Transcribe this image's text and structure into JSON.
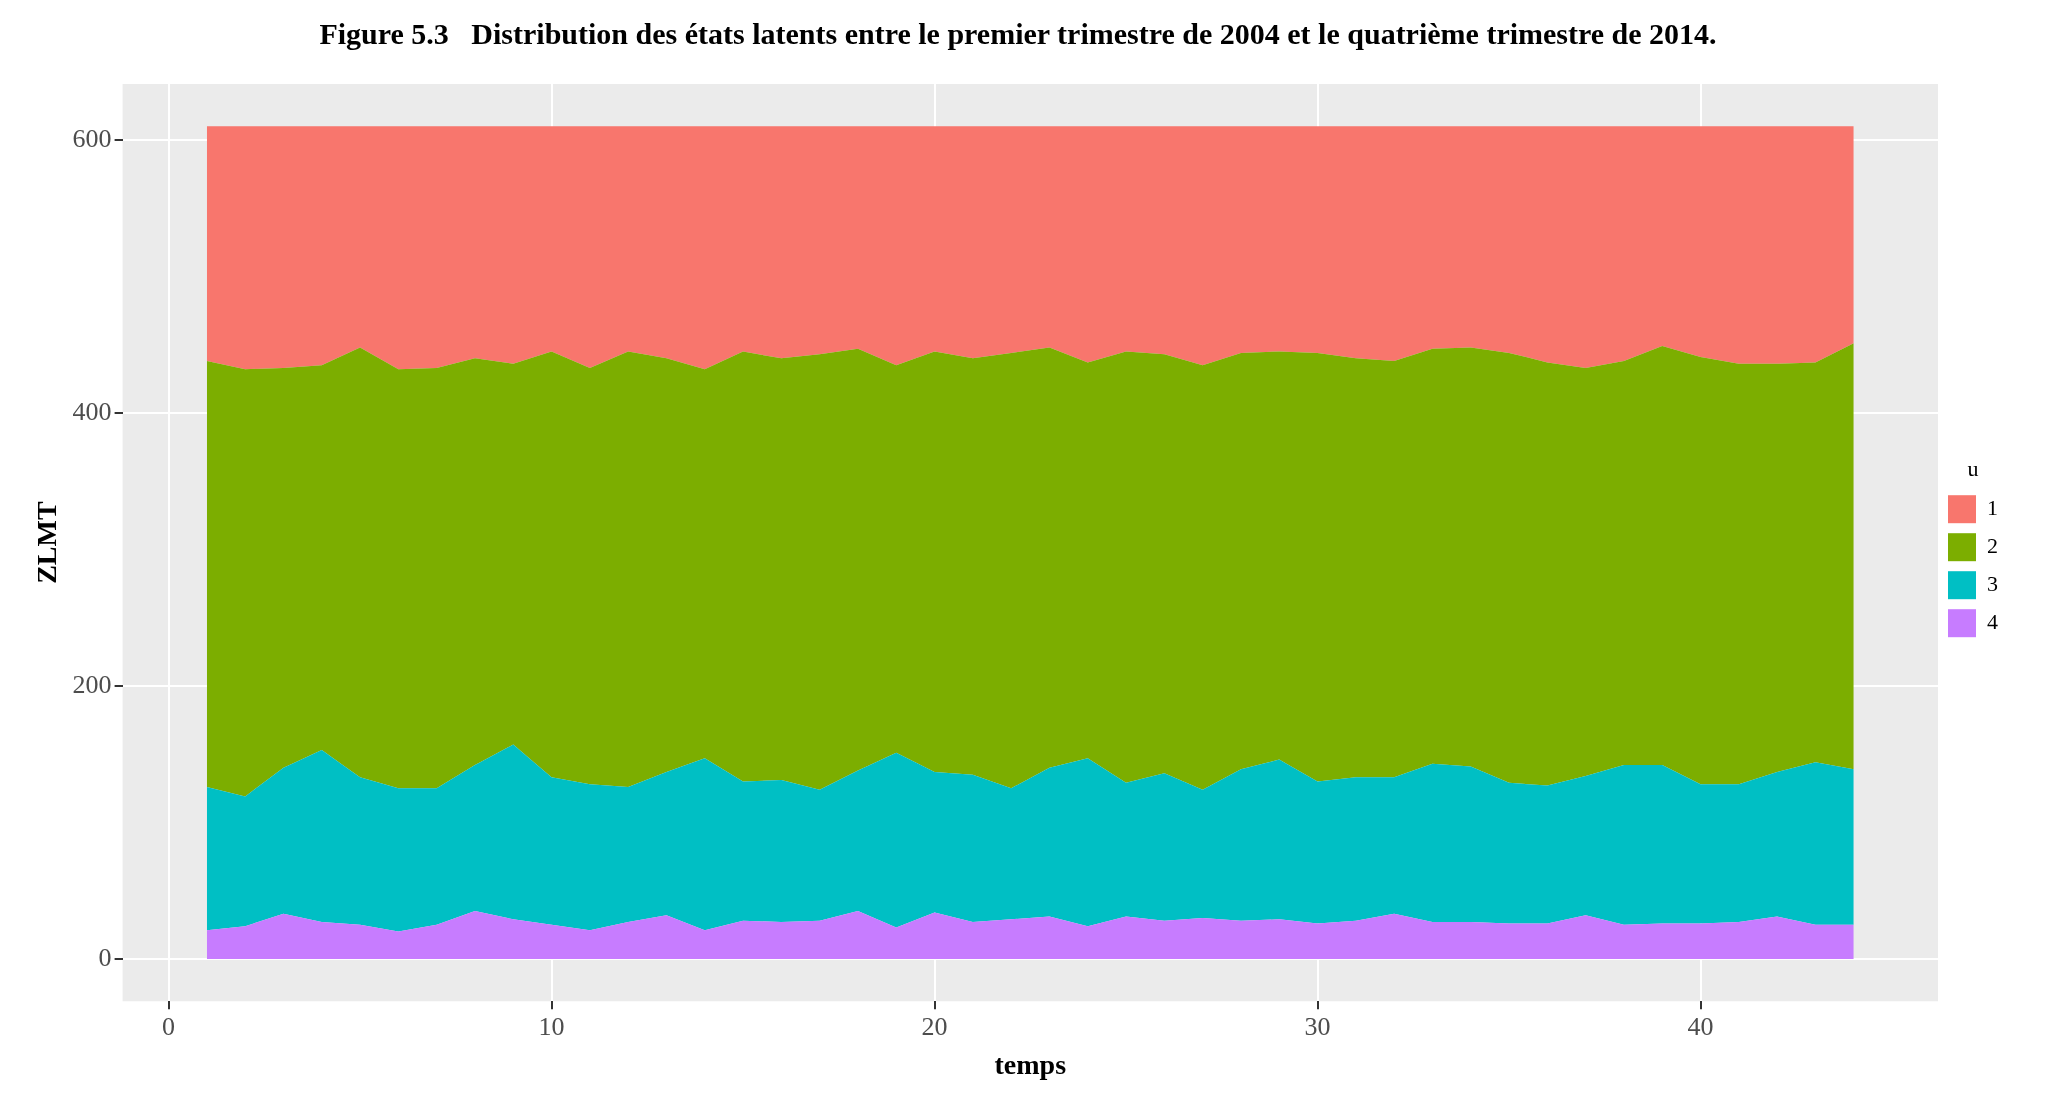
{
  "chart_data": {
    "type": "area",
    "stacked": true,
    "title": "Figure 5.3   Distribution des états latents entre le premier trimestre de 2004 et le quatrième trimestre de 2014.",
    "xlabel": "temps",
    "ylabel": "ZLMT",
    "legend_title": "u",
    "legend": "right",
    "grid": true,
    "x": [
      1,
      2,
      3,
      4,
      5,
      6,
      7,
      8,
      9,
      10,
      11,
      12,
      13,
      14,
      15,
      16,
      17,
      18,
      19,
      20,
      21,
      22,
      23,
      24,
      25,
      26,
      27,
      28,
      29,
      30,
      31,
      32,
      33,
      34,
      35,
      36,
      37,
      38,
      39,
      40,
      41,
      42,
      43,
      44
    ],
    "xlim": [
      -1.2,
      46.2
    ],
    "xticks": [
      0,
      10,
      20,
      30,
      40
    ],
    "ylim": [
      -31,
      641
    ],
    "yticks": [
      0,
      200,
      400,
      600
    ],
    "series": [
      {
        "name": "4",
        "color": "#c77cff",
        "values": [
          21,
          24,
          33,
          27,
          25,
          20,
          25,
          35,
          29,
          25,
          21,
          27,
          32,
          21,
          28,
          27,
          28,
          35,
          23,
          34,
          27,
          29,
          31,
          24,
          31,
          28,
          30,
          28,
          29,
          26,
          28,
          33,
          27,
          27,
          26,
          26,
          32,
          25,
          26,
          26,
          27,
          31,
          25,
          25
        ]
      },
      {
        "name": "3",
        "color": "#00bfc4",
        "values": [
          105,
          95,
          107,
          126,
          108,
          105,
          100,
          107,
          128,
          108,
          107,
          99,
          105,
          126,
          102,
          104,
          96,
          103,
          128,
          103,
          108,
          96,
          109,
          123,
          98,
          108,
          94,
          111,
          117,
          104,
          105,
          100,
          116,
          114,
          103,
          101,
          102,
          117,
          116,
          102,
          101,
          106,
          119,
          114
        ]
      },
      {
        "name": "2",
        "color": "#7cae00",
        "values": [
          312,
          313,
          293,
          282,
          315,
          307,
          308,
          298,
          279,
          312,
          305,
          319,
          303,
          285,
          315,
          309,
          319,
          309,
          284,
          308,
          305,
          319,
          308,
          290,
          316,
          307,
          311,
          305,
          299,
          314,
          307,
          305,
          304,
          307,
          315,
          310,
          299,
          296,
          307,
          313,
          308,
          299,
          293,
          312
        ]
      },
      {
        "name": "1",
        "color": "#f8766d",
        "values": [
          172,
          178,
          177,
          175,
          162,
          178,
          177,
          170,
          174,
          165,
          177,
          165,
          170,
          178,
          165,
          170,
          167,
          163,
          175,
          165,
          170,
          166,
          162,
          173,
          165,
          167,
          175,
          166,
          165,
          166,
          170,
          172,
          163,
          162,
          166,
          173,
          177,
          172,
          161,
          169,
          174,
          174,
          173,
          159
        ]
      }
    ]
  }
}
